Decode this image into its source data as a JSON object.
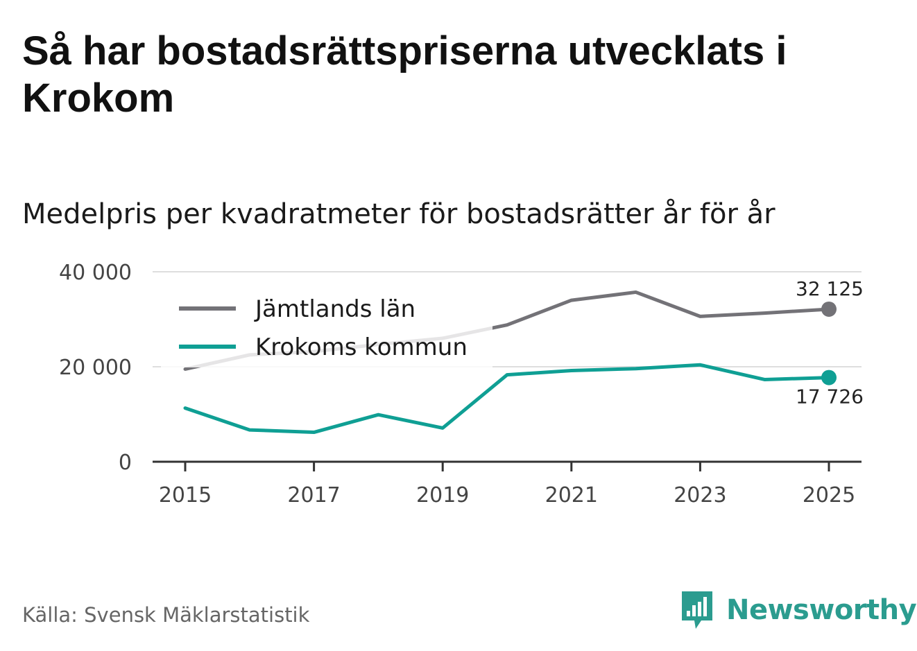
{
  "title": "Så har bostadsrättspriserna utvecklats i Krokom",
  "subtitle": "Medelpris per kvadratmeter för bostadsrätter år för år",
  "source": "Källa: Svensk Mäklarstatistik",
  "brand": {
    "name": "Newsworthy",
    "icon": "newsworthy-logo-icon",
    "color": "#2b9c8f"
  },
  "chart_data": {
    "type": "line",
    "title": "Så har bostadsrättspriserna utvecklats i Krokom",
    "subtitle": "Medelpris per kvadratmeter för bostadsrätter år för år",
    "xlabel": "",
    "ylabel": "",
    "x": [
      2015,
      2016,
      2017,
      2018,
      2019,
      2020,
      2021,
      2022,
      2023,
      2024,
      2025
    ],
    "x_ticks": [
      "2015",
      "2017",
      "2019",
      "2021",
      "2023",
      "2025"
    ],
    "y_ticks": [
      "0",
      "20 000",
      "40 000"
    ],
    "y_tick_values": [
      0,
      20000,
      40000
    ],
    "ylim": [
      0,
      40000
    ],
    "grid": true,
    "legend_position": "top-left",
    "series": [
      {
        "name": "Jämtlands län",
        "color": "#737277",
        "values": [
          19500,
          22500,
          23200,
          24700,
          26000,
          28800,
          34000,
          35700,
          30600,
          31300,
          32125
        ],
        "end_label": "32 125"
      },
      {
        "name": "Krokoms kommun",
        "color": "#0f9f94",
        "values": [
          11300,
          6700,
          6200,
          9900,
          7100,
          18300,
          19200,
          19600,
          20400,
          17300,
          17726
        ],
        "end_label": "17 726"
      }
    ]
  }
}
